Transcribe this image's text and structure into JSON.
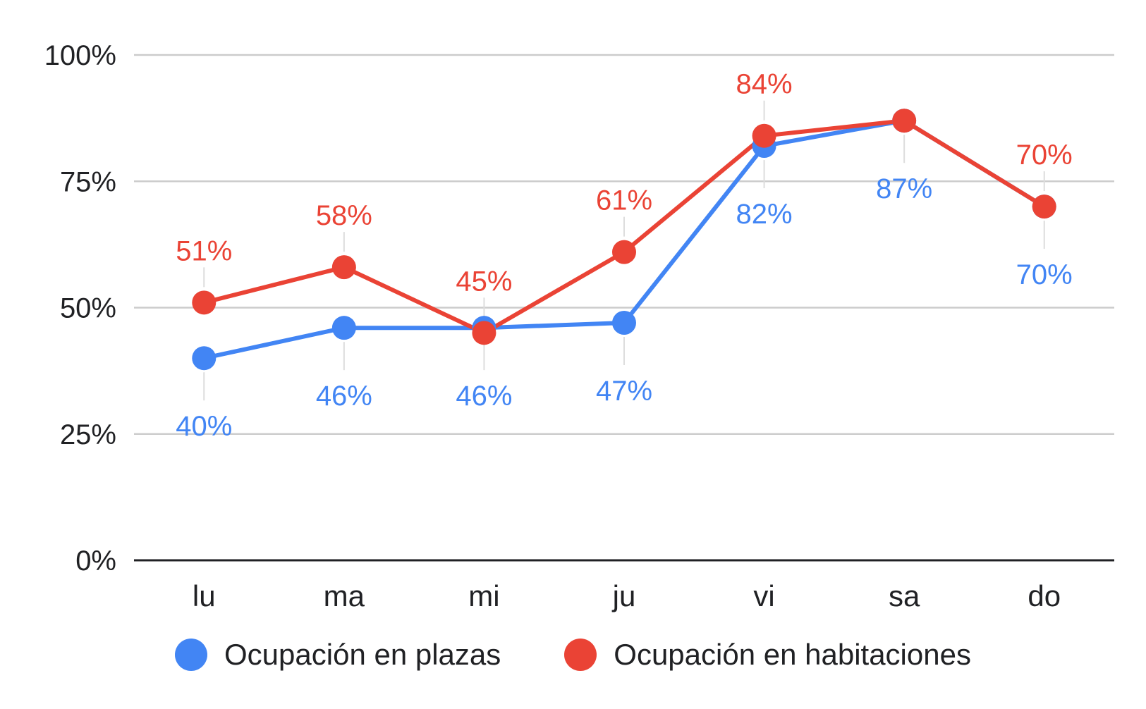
{
  "chart_data": {
    "type": "line",
    "categories": [
      "lu",
      "ma",
      "mi",
      "ju",
      "vi",
      "sa",
      "do"
    ],
    "ylim": [
      0,
      100
    ],
    "yticks": [
      0,
      25,
      50,
      75,
      100
    ],
    "ytick_labels": [
      "0%",
      "25%",
      "50%",
      "75%",
      "100%"
    ],
    "grid": true,
    "legend_position": "bottom",
    "series": [
      {
        "name": "Ocupación en plazas",
        "color": "#4285F4",
        "values": [
          40,
          46,
          46,
          47,
          82,
          87,
          70
        ],
        "labels": [
          "40%",
          "46%",
          "46%",
          "47%",
          "82%",
          "87%",
          "70%"
        ],
        "label_side": [
          "below",
          "below",
          "below",
          "below",
          "below",
          "below",
          "below"
        ]
      },
      {
        "name": "Ocupación en habitaciones",
        "color": "#EA4335",
        "values": [
          51,
          58,
          45,
          61,
          84,
          87,
          70
        ],
        "labels": [
          "51%",
          "58%",
          "45%",
          "61%",
          "84%",
          "",
          "70%"
        ],
        "label_side": [
          "above",
          "above",
          "above",
          "above",
          "above",
          "above",
          "above"
        ]
      }
    ]
  }
}
